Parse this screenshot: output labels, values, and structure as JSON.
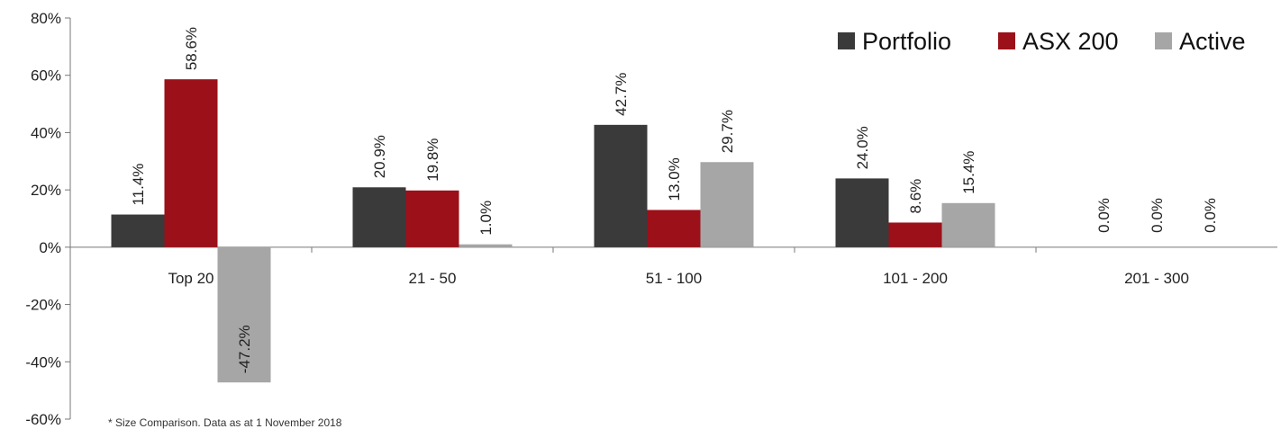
{
  "chart_data": {
    "type": "bar",
    "categories": [
      "Top 20",
      "21 - 50",
      "51 - 100",
      "101 - 200",
      "201 - 300"
    ],
    "series": [
      {
        "name": "Portfolio",
        "color": "#3a3a3a",
        "values": [
          11.4,
          20.9,
          42.7,
          24.0,
          0.0
        ],
        "labels": [
          "11.4%",
          "20.9%",
          "42.7%",
          "24.0%",
          "0.0%"
        ]
      },
      {
        "name": "ASX 200",
        "color": "#9b1019",
        "values": [
          58.6,
          19.8,
          13.0,
          8.6,
          0.0
        ],
        "labels": [
          "58.6%",
          "19.8%",
          "13.0%",
          "8.6%",
          "0.0%"
        ]
      },
      {
        "name": "Active",
        "color": "#a6a6a6",
        "values": [
          -47.2,
          1.0,
          29.7,
          15.4,
          0.0
        ],
        "labels": [
          "-47.2%",
          "1.0%",
          "29.7%",
          "15.4%",
          "0.0%"
        ]
      }
    ],
    "ylim": [
      -60,
      80
    ],
    "yticks": [
      80,
      60,
      40,
      20,
      0,
      -20,
      -40,
      -60
    ],
    "ytick_labels": [
      "80%",
      "60%",
      "40%",
      "20%",
      "0%",
      "-20%",
      "-40%",
      "-60%"
    ],
    "xlabel": "",
    "ylabel": "",
    "title": "",
    "legend_position": "top-right",
    "grid": false
  },
  "footnote": "* Size Comparison. Data as at 1 November 2018"
}
